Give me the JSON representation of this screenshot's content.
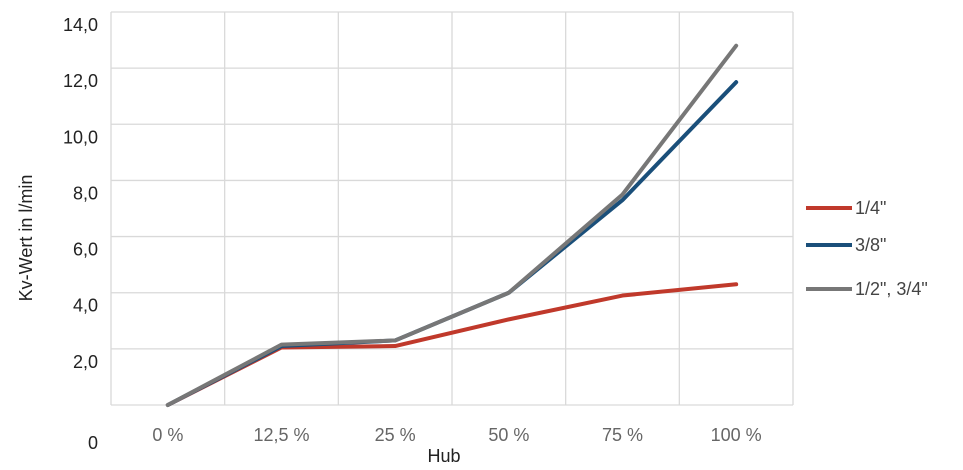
{
  "chart_data": {
    "type": "line",
    "xlabel": "Hub",
    "ylabel": "Kv-Wert in l/min",
    "categories": [
      "0 %",
      "12,5 %",
      "25 %",
      "50 %",
      "75 %",
      "100 %"
    ],
    "y_tick_labels": [
      "0",
      "2,0",
      "4,0",
      "6,0",
      "8,0",
      "10,0",
      "12,0",
      "14,0"
    ],
    "ylim": [
      0,
      14
    ],
    "grid": true,
    "legend_position": "right",
    "series": [
      {
        "name": "1/4\"",
        "color": "#c0392b",
        "values": [
          0.0,
          2.05,
          2.1,
          3.05,
          3.9,
          4.3
        ]
      },
      {
        "name": "3/8\"",
        "color": "#1a4f7a",
        "values": [
          0.0,
          2.1,
          2.3,
          4.0,
          7.3,
          11.5
        ]
      },
      {
        "name": "1/2\", 3/4\"",
        "color": "#777777",
        "values": [
          0.0,
          2.15,
          2.3,
          4.0,
          7.5,
          12.8
        ]
      }
    ]
  }
}
